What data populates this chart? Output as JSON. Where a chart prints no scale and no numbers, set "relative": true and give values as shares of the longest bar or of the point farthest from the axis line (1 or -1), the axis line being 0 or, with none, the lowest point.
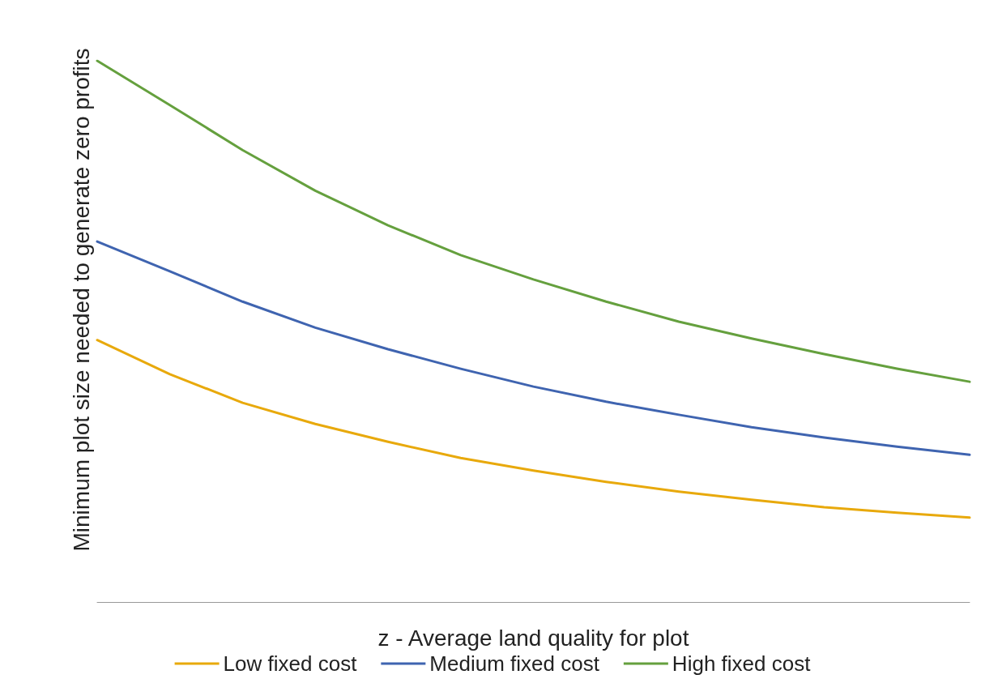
{
  "chart_data": {
    "type": "line",
    "relative": true,
    "xlabel": "z - Average land quality for plot",
    "ylabel": "Minimum plot size needed to generate zero profits",
    "categories": [
      null,
      null,
      null,
      null,
      null,
      null,
      null,
      null,
      null,
      null,
      null,
      null,
      null
    ],
    "series": [
      {
        "name": "Low fixed cost",
        "color": "#e8a90c",
        "values": [
          0.484,
          0.421,
          0.368,
          0.329,
          0.296,
          0.266,
          0.243,
          0.222,
          0.204,
          0.189,
          0.175,
          0.165,
          0.156
        ]
      },
      {
        "name": "Medium fixed cost",
        "color": "#3f64b0",
        "values": [
          0.666,
          0.611,
          0.555,
          0.507,
          0.467,
          0.431,
          0.398,
          0.37,
          0.346,
          0.323,
          0.304,
          0.287,
          0.272
        ]
      },
      {
        "name": "High fixed cost",
        "color": "#65a03e",
        "values": [
          1,
          0.918,
          0.835,
          0.76,
          0.696,
          0.641,
          0.596,
          0.555,
          0.518,
          0.487,
          0.458,
          0.431,
          0.407
        ]
      }
    ],
    "legend": "bottom",
    "grid": false,
    "marker": "none",
    "line_style": "solid"
  }
}
